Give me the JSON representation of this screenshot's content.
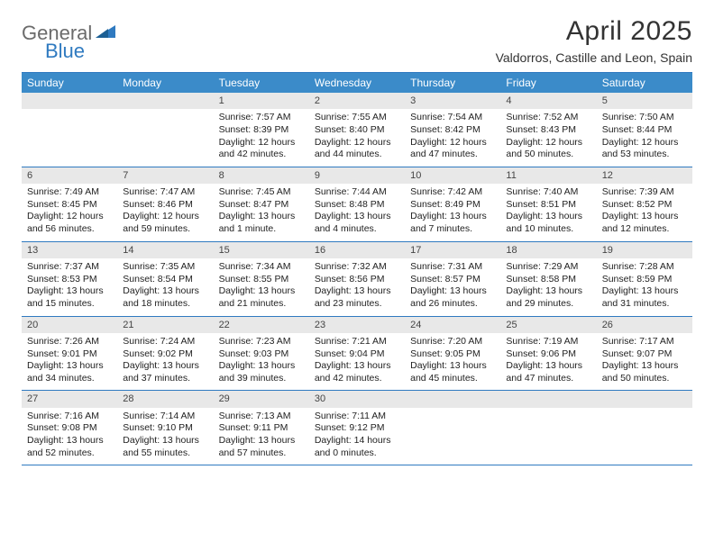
{
  "brand": {
    "part1": "General",
    "part2": "Blue"
  },
  "title": "April 2025",
  "location": "Valdorros, Castille and Leon, Spain",
  "colors": {
    "header_bg": "#3b8bc9",
    "border": "#2f7ac0",
    "daybar_bg": "#e8e8e8",
    "text": "#222222",
    "brand_gray": "#6b6b6b",
    "brand_blue": "#2f7ac0"
  },
  "dayNames": [
    "Sunday",
    "Monday",
    "Tuesday",
    "Wednesday",
    "Thursday",
    "Friday",
    "Saturday"
  ],
  "weeks": [
    [
      {
        "num": "",
        "sunrise": "",
        "sunset": "",
        "daylight": ""
      },
      {
        "num": "",
        "sunrise": "",
        "sunset": "",
        "daylight": ""
      },
      {
        "num": "1",
        "sunrise": "Sunrise: 7:57 AM",
        "sunset": "Sunset: 8:39 PM",
        "daylight": "Daylight: 12 hours and 42 minutes."
      },
      {
        "num": "2",
        "sunrise": "Sunrise: 7:55 AM",
        "sunset": "Sunset: 8:40 PM",
        "daylight": "Daylight: 12 hours and 44 minutes."
      },
      {
        "num": "3",
        "sunrise": "Sunrise: 7:54 AM",
        "sunset": "Sunset: 8:42 PM",
        "daylight": "Daylight: 12 hours and 47 minutes."
      },
      {
        "num": "4",
        "sunrise": "Sunrise: 7:52 AM",
        "sunset": "Sunset: 8:43 PM",
        "daylight": "Daylight: 12 hours and 50 minutes."
      },
      {
        "num": "5",
        "sunrise": "Sunrise: 7:50 AM",
        "sunset": "Sunset: 8:44 PM",
        "daylight": "Daylight: 12 hours and 53 minutes."
      }
    ],
    [
      {
        "num": "6",
        "sunrise": "Sunrise: 7:49 AM",
        "sunset": "Sunset: 8:45 PM",
        "daylight": "Daylight: 12 hours and 56 minutes."
      },
      {
        "num": "7",
        "sunrise": "Sunrise: 7:47 AM",
        "sunset": "Sunset: 8:46 PM",
        "daylight": "Daylight: 12 hours and 59 minutes."
      },
      {
        "num": "8",
        "sunrise": "Sunrise: 7:45 AM",
        "sunset": "Sunset: 8:47 PM",
        "daylight": "Daylight: 13 hours and 1 minute."
      },
      {
        "num": "9",
        "sunrise": "Sunrise: 7:44 AM",
        "sunset": "Sunset: 8:48 PM",
        "daylight": "Daylight: 13 hours and 4 minutes."
      },
      {
        "num": "10",
        "sunrise": "Sunrise: 7:42 AM",
        "sunset": "Sunset: 8:49 PM",
        "daylight": "Daylight: 13 hours and 7 minutes."
      },
      {
        "num": "11",
        "sunrise": "Sunrise: 7:40 AM",
        "sunset": "Sunset: 8:51 PM",
        "daylight": "Daylight: 13 hours and 10 minutes."
      },
      {
        "num": "12",
        "sunrise": "Sunrise: 7:39 AM",
        "sunset": "Sunset: 8:52 PM",
        "daylight": "Daylight: 13 hours and 12 minutes."
      }
    ],
    [
      {
        "num": "13",
        "sunrise": "Sunrise: 7:37 AM",
        "sunset": "Sunset: 8:53 PM",
        "daylight": "Daylight: 13 hours and 15 minutes."
      },
      {
        "num": "14",
        "sunrise": "Sunrise: 7:35 AM",
        "sunset": "Sunset: 8:54 PM",
        "daylight": "Daylight: 13 hours and 18 minutes."
      },
      {
        "num": "15",
        "sunrise": "Sunrise: 7:34 AM",
        "sunset": "Sunset: 8:55 PM",
        "daylight": "Daylight: 13 hours and 21 minutes."
      },
      {
        "num": "16",
        "sunrise": "Sunrise: 7:32 AM",
        "sunset": "Sunset: 8:56 PM",
        "daylight": "Daylight: 13 hours and 23 minutes."
      },
      {
        "num": "17",
        "sunrise": "Sunrise: 7:31 AM",
        "sunset": "Sunset: 8:57 PM",
        "daylight": "Daylight: 13 hours and 26 minutes."
      },
      {
        "num": "18",
        "sunrise": "Sunrise: 7:29 AM",
        "sunset": "Sunset: 8:58 PM",
        "daylight": "Daylight: 13 hours and 29 minutes."
      },
      {
        "num": "19",
        "sunrise": "Sunrise: 7:28 AM",
        "sunset": "Sunset: 8:59 PM",
        "daylight": "Daylight: 13 hours and 31 minutes."
      }
    ],
    [
      {
        "num": "20",
        "sunrise": "Sunrise: 7:26 AM",
        "sunset": "Sunset: 9:01 PM",
        "daylight": "Daylight: 13 hours and 34 minutes."
      },
      {
        "num": "21",
        "sunrise": "Sunrise: 7:24 AM",
        "sunset": "Sunset: 9:02 PM",
        "daylight": "Daylight: 13 hours and 37 minutes."
      },
      {
        "num": "22",
        "sunrise": "Sunrise: 7:23 AM",
        "sunset": "Sunset: 9:03 PM",
        "daylight": "Daylight: 13 hours and 39 minutes."
      },
      {
        "num": "23",
        "sunrise": "Sunrise: 7:21 AM",
        "sunset": "Sunset: 9:04 PM",
        "daylight": "Daylight: 13 hours and 42 minutes."
      },
      {
        "num": "24",
        "sunrise": "Sunrise: 7:20 AM",
        "sunset": "Sunset: 9:05 PM",
        "daylight": "Daylight: 13 hours and 45 minutes."
      },
      {
        "num": "25",
        "sunrise": "Sunrise: 7:19 AM",
        "sunset": "Sunset: 9:06 PM",
        "daylight": "Daylight: 13 hours and 47 minutes."
      },
      {
        "num": "26",
        "sunrise": "Sunrise: 7:17 AM",
        "sunset": "Sunset: 9:07 PM",
        "daylight": "Daylight: 13 hours and 50 minutes."
      }
    ],
    [
      {
        "num": "27",
        "sunrise": "Sunrise: 7:16 AM",
        "sunset": "Sunset: 9:08 PM",
        "daylight": "Daylight: 13 hours and 52 minutes."
      },
      {
        "num": "28",
        "sunrise": "Sunrise: 7:14 AM",
        "sunset": "Sunset: 9:10 PM",
        "daylight": "Daylight: 13 hours and 55 minutes."
      },
      {
        "num": "29",
        "sunrise": "Sunrise: 7:13 AM",
        "sunset": "Sunset: 9:11 PM",
        "daylight": "Daylight: 13 hours and 57 minutes."
      },
      {
        "num": "30",
        "sunrise": "Sunrise: 7:11 AM",
        "sunset": "Sunset: 9:12 PM",
        "daylight": "Daylight: 14 hours and 0 minutes."
      },
      {
        "num": "",
        "sunrise": "",
        "sunset": "",
        "daylight": ""
      },
      {
        "num": "",
        "sunrise": "",
        "sunset": "",
        "daylight": ""
      },
      {
        "num": "",
        "sunrise": "",
        "sunset": "",
        "daylight": ""
      }
    ]
  ]
}
